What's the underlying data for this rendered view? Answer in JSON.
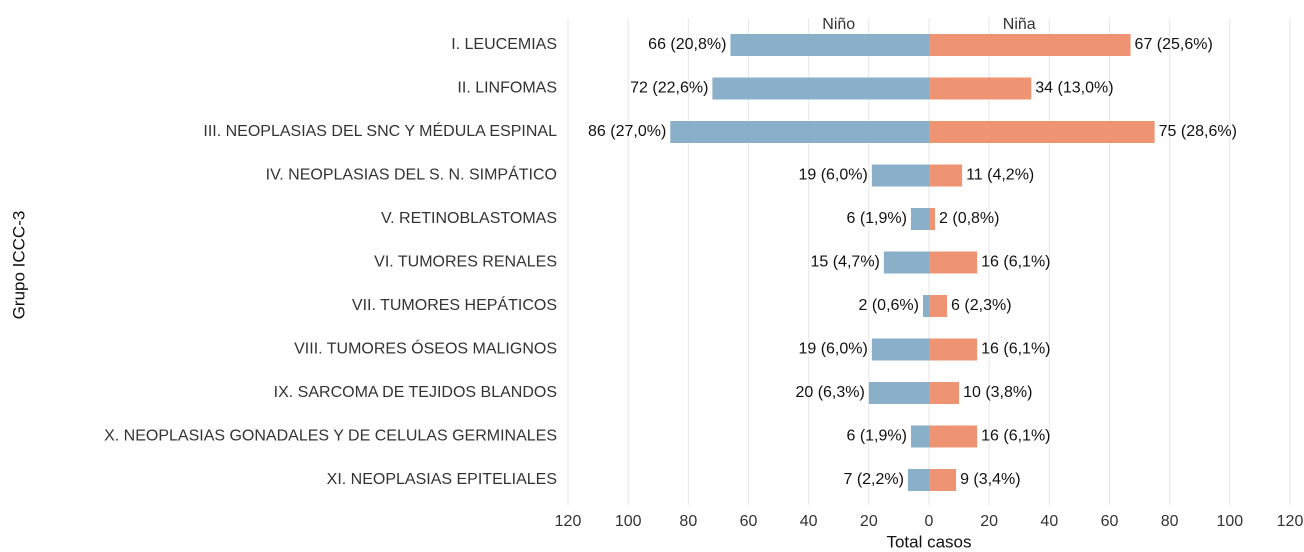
{
  "chart_data": {
    "type": "diverging-bar",
    "xlabel": "Total casos",
    "ylabel": "Grupo ICCC-3",
    "categories": [
      "I. LEUCEMIAS",
      "II. LINFOMAS",
      "III. NEOPLASIAS DEL SNC Y MÉDULA ESPINAL",
      "IV. NEOPLASIAS DEL S. N. SIMPÁTICO",
      "V. RETINOBLASTOMAS",
      "VI. TUMORES RENALES",
      "VII. TUMORES HEPÁTICOS",
      "VIII. TUMORES ÓSEOS MALIGNOS",
      "IX. SARCOMA DE TEJIDOS BLANDOS",
      "X. NEOPLASIAS GONADALES Y DE CELULAS GERMINALES",
      "XI. NEOPLASIAS EPITELIALES"
    ],
    "series": [
      {
        "name": "Niño",
        "color": "#8aafc8",
        "values": [
          -66,
          -72,
          -86,
          -19,
          -6,
          -15,
          -2,
          -19,
          -20,
          -6,
          -7
        ],
        "value_labels": [
          "66 (20,8%)",
          "72 (22,6%)",
          "86 (27,0%)",
          "19 (6,0%)",
          "6 (1,9%)",
          "15 (4,7%)",
          "2 (0,6%)",
          "19 (6,0%)",
          "20 (6,3%)",
          "6 (1,9%)",
          "7 (2,2%)"
        ]
      },
      {
        "name": "Niña",
        "color": "#ee9472",
        "values": [
          67,
          34,
          75,
          11,
          2,
          16,
          6,
          16,
          10,
          16,
          9
        ],
        "value_labels": [
          "67 (25,6%)",
          "34 (13,0%)",
          "75 (28,6%)",
          "11 (4,2%)",
          "2 (0,8%)",
          "16 (6,1%)",
          "6 (2,3%)",
          "16 (6,1%)",
          "10 (3,8%)",
          "16 (6,1%)",
          "9 (3,4%)"
        ]
      }
    ],
    "xlim": [
      -120,
      120
    ],
    "xticks": [
      {
        "value": -120,
        "label": "120"
      },
      {
        "value": -100,
        "label": "100"
      },
      {
        "value": -80,
        "label": "80"
      },
      {
        "value": -60,
        "label": "60"
      },
      {
        "value": -40,
        "label": "40"
      },
      {
        "value": -20,
        "label": "20"
      },
      0,
      20,
      40,
      60,
      80,
      100,
      120
    ],
    "grid": true
  }
}
